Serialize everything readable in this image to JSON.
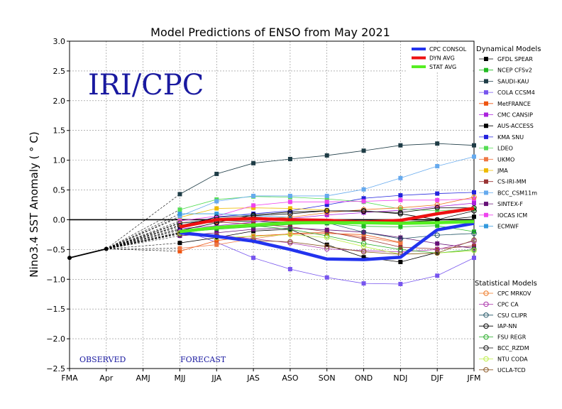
{
  "chart_data": {
    "type": "line",
    "title": "Model Predictions of ENSO from May 2021",
    "ylabel": "Nino3.4 SST Anomaly ( ° C)",
    "xlabel": "",
    "watermark": "IRI/CPC",
    "observed_label": "OBSERVED",
    "forecast_label": "FORECAST",
    "categories": [
      "FMA",
      "Apr",
      "AMJ",
      "MJJ",
      "JJA",
      "JAS",
      "ASO",
      "SON",
      "OND",
      "NDJ",
      "DJF",
      "JFM"
    ],
    "ylim": [
      -2.5,
      3.0
    ],
    "yticks": [
      3.0,
      2.5,
      2.0,
      1.5,
      1.0,
      0.5,
      0.0,
      -0.5,
      -1.0,
      -1.5,
      -2.0,
      -2.5
    ],
    "ytick_labels": [
      "3.0",
      "2.5",
      "2.0",
      "1.5",
      "1.0",
      "0.5",
      "0.0",
      "−0.5",
      "−1.0",
      "−1.5",
      "−2.0",
      "−2.5"
    ],
    "grid": true,
    "observed": [
      -0.64,
      -0.49
    ],
    "summary_legend_position": "top-right",
    "summary": [
      {
        "name": "CPC CONSOL",
        "color": "#2233ee",
        "values": [
          null,
          null,
          null,
          -0.22,
          -0.28,
          -0.36,
          -0.5,
          -0.66,
          -0.67,
          -0.63,
          -0.17,
          -0.06
        ]
      },
      {
        "name": "DYN AVG",
        "color": "#ee1111",
        "values": [
          null,
          null,
          null,
          -0.12,
          0.0,
          0.02,
          0.0,
          -0.01,
          -0.04,
          -0.01,
          0.1,
          0.19
        ]
      },
      {
        "name": "STAT AVG",
        "color": "#55ee22",
        "values": [
          null,
          null,
          null,
          -0.2,
          -0.13,
          -0.09,
          -0.05,
          -0.05,
          -0.05,
          -0.06,
          -0.05,
          -0.03
        ]
      }
    ],
    "dynamical_heading": "Dynamical Models",
    "dynamical": [
      {
        "name": "GFDL SPEAR",
        "color": "#000000",
        "values": [
          null,
          null,
          null,
          -0.05,
          -0.01,
          -0.03,
          -0.04,
          -0.05,
          -0.06,
          -0.04,
          -0.01,
          0.05
        ]
      },
      {
        "name": "NCEP CFSv2",
        "color": "#22bb22",
        "values": [
          null,
          null,
          null,
          -0.21,
          -0.16,
          -0.12,
          -0.08,
          -0.06,
          -0.11,
          -0.12,
          -0.1,
          -0.2
        ]
      },
      {
        "name": "SAUDI-KAU",
        "color": "#1e3c46",
        "values": [
          null,
          null,
          null,
          0.43,
          0.77,
          0.95,
          1.02,
          1.08,
          1.16,
          1.25,
          1.28,
          1.25
        ]
      },
      {
        "name": "COLA CCSM4",
        "color": "#7755ee",
        "values": [
          null,
          null,
          null,
          -0.16,
          -0.38,
          -0.64,
          -0.83,
          -0.97,
          -1.07,
          -1.08,
          -0.94,
          -0.64
        ]
      },
      {
        "name": "MetFRANCE",
        "color": "#ee5511",
        "values": [
          null,
          null,
          null,
          -0.53,
          -0.35,
          -0.27,
          -0.24,
          -0.23,
          -0.25,
          -0.38,
          null,
          null
        ]
      },
      {
        "name": "CMC CANSIP",
        "color": "#aa22dd",
        "values": [
          null,
          null,
          null,
          -0.15,
          -0.1,
          -0.04,
          0.02,
          0.08,
          0.12,
          0.16,
          0.22,
          0.28
        ]
      },
      {
        "name": "AUS-ACCESS",
        "color": "#000000",
        "values": [
          null,
          null,
          null,
          -0.39,
          -0.3,
          -0.19,
          -0.16,
          -0.42,
          -0.63,
          -0.71,
          -0.55,
          null
        ]
      },
      {
        "name": "KMA SNU",
        "color": "#2222dd",
        "values": [
          null,
          null,
          null,
          -0.12,
          0.05,
          0.1,
          0.15,
          0.25,
          0.36,
          0.41,
          0.44,
          0.46
        ]
      },
      {
        "name": "LDEO",
        "color": "#55dd55",
        "values": [
          null,
          null,
          null,
          0.17,
          0.34,
          0.39,
          0.38,
          0.35,
          0.3,
          0.18,
          0.15,
          0.18
        ]
      },
      {
        "name": "UKMO",
        "color": "#ee7744",
        "values": [
          null,
          null,
          null,
          -0.48,
          -0.42,
          -0.32,
          -0.23,
          -0.21,
          -0.29,
          -0.39,
          null,
          null
        ]
      },
      {
        "name": "JMA",
        "color": "#eebb00",
        "values": [
          null,
          null,
          null,
          0.04,
          0.19,
          0.2,
          0.19,
          0.16,
          null,
          null,
          null,
          null
        ]
      },
      {
        "name": "CS-IRI-MM",
        "color": "#993333",
        "values": [
          null,
          null,
          null,
          -0.09,
          -0.04,
          -0.07,
          -0.12,
          -0.2,
          -0.32,
          -0.46,
          -0.49,
          -0.44
        ]
      },
      {
        "name": "BCC_CSM11m",
        "color": "#66aaee",
        "values": [
          null,
          null,
          null,
          0.06,
          0.31,
          0.4,
          0.4,
          0.4,
          0.51,
          0.7,
          0.9,
          1.06
        ]
      },
      {
        "name": "SINTEX-F",
        "color": "#661177",
        "values": [
          null,
          null,
          null,
          -0.27,
          -0.22,
          -0.16,
          -0.14,
          -0.17,
          -0.21,
          -0.3,
          -0.4,
          -0.48
        ]
      },
      {
        "name": "IOCAS ICM",
        "color": "#ee44ee",
        "values": [
          null,
          null,
          null,
          -0.02,
          0.06,
          0.24,
          0.3,
          0.3,
          0.31,
          0.33,
          0.33,
          0.35
        ]
      },
      {
        "name": "ECMWF",
        "color": "#3399dd",
        "values": [
          null,
          null,
          null,
          0.1,
          0.1,
          0.07,
          0.04,
          null,
          null,
          null,
          null,
          null
        ]
      }
    ],
    "statistical_heading": "Statistical Models",
    "statistical": [
      {
        "name": "CPC MRKOV",
        "color": "#ee7722",
        "values": [
          null,
          null,
          null,
          -0.05,
          -0.02,
          0.02,
          0.04,
          0.12,
          0.17,
          0.2,
          0.25,
          0.38
        ]
      },
      {
        "name": "CPC CA",
        "color": "#aa33aa",
        "values": [
          null,
          null,
          null,
          -0.21,
          -0.26,
          -0.32,
          -0.39,
          -0.49,
          -0.52,
          -0.54,
          -0.5,
          -0.36
        ]
      },
      {
        "name": "CSU CLIPR",
        "color": "#225566",
        "values": [
          null,
          null,
          null,
          -0.06,
          0.0,
          0.05,
          0.0,
          -0.05,
          -0.21,
          -0.32,
          -0.26,
          -0.23
        ]
      },
      {
        "name": "IAP-NN",
        "color": "#000000",
        "values": [
          null,
          null,
          null,
          -0.18,
          -0.05,
          0.08,
          0.13,
          0.15,
          0.15,
          0.1,
          0.0,
          0.15
        ]
      },
      {
        "name": "FSU REGR",
        "color": "#22aa22",
        "values": [
          null,
          null,
          null,
          -0.23,
          -0.14,
          -0.1,
          -0.16,
          -0.27,
          -0.4,
          -0.5,
          -0.56,
          -0.5
        ]
      },
      {
        "name": "BCC_RZDM",
        "color": "#111111",
        "values": [
          null,
          null,
          null,
          -0.1,
          0.04,
          0.07,
          0.1,
          0.15,
          0.14,
          0.12,
          0.2,
          0.2
        ]
      },
      {
        "name": "NTU CODA",
        "color": "#bbee44",
        "values": [
          null,
          null,
          null,
          -0.22,
          -0.3,
          -0.28,
          -0.25,
          -0.3,
          -0.45,
          -0.58,
          -0.56,
          -0.52
        ]
      },
      {
        "name": "UCLA-TCD",
        "color": "#885522",
        "values": [
          null,
          null,
          null,
          -0.24,
          -0.27,
          -0.35,
          -0.37,
          -0.45,
          -0.54,
          -0.58,
          -0.56,
          -0.34
        ]
      }
    ]
  }
}
